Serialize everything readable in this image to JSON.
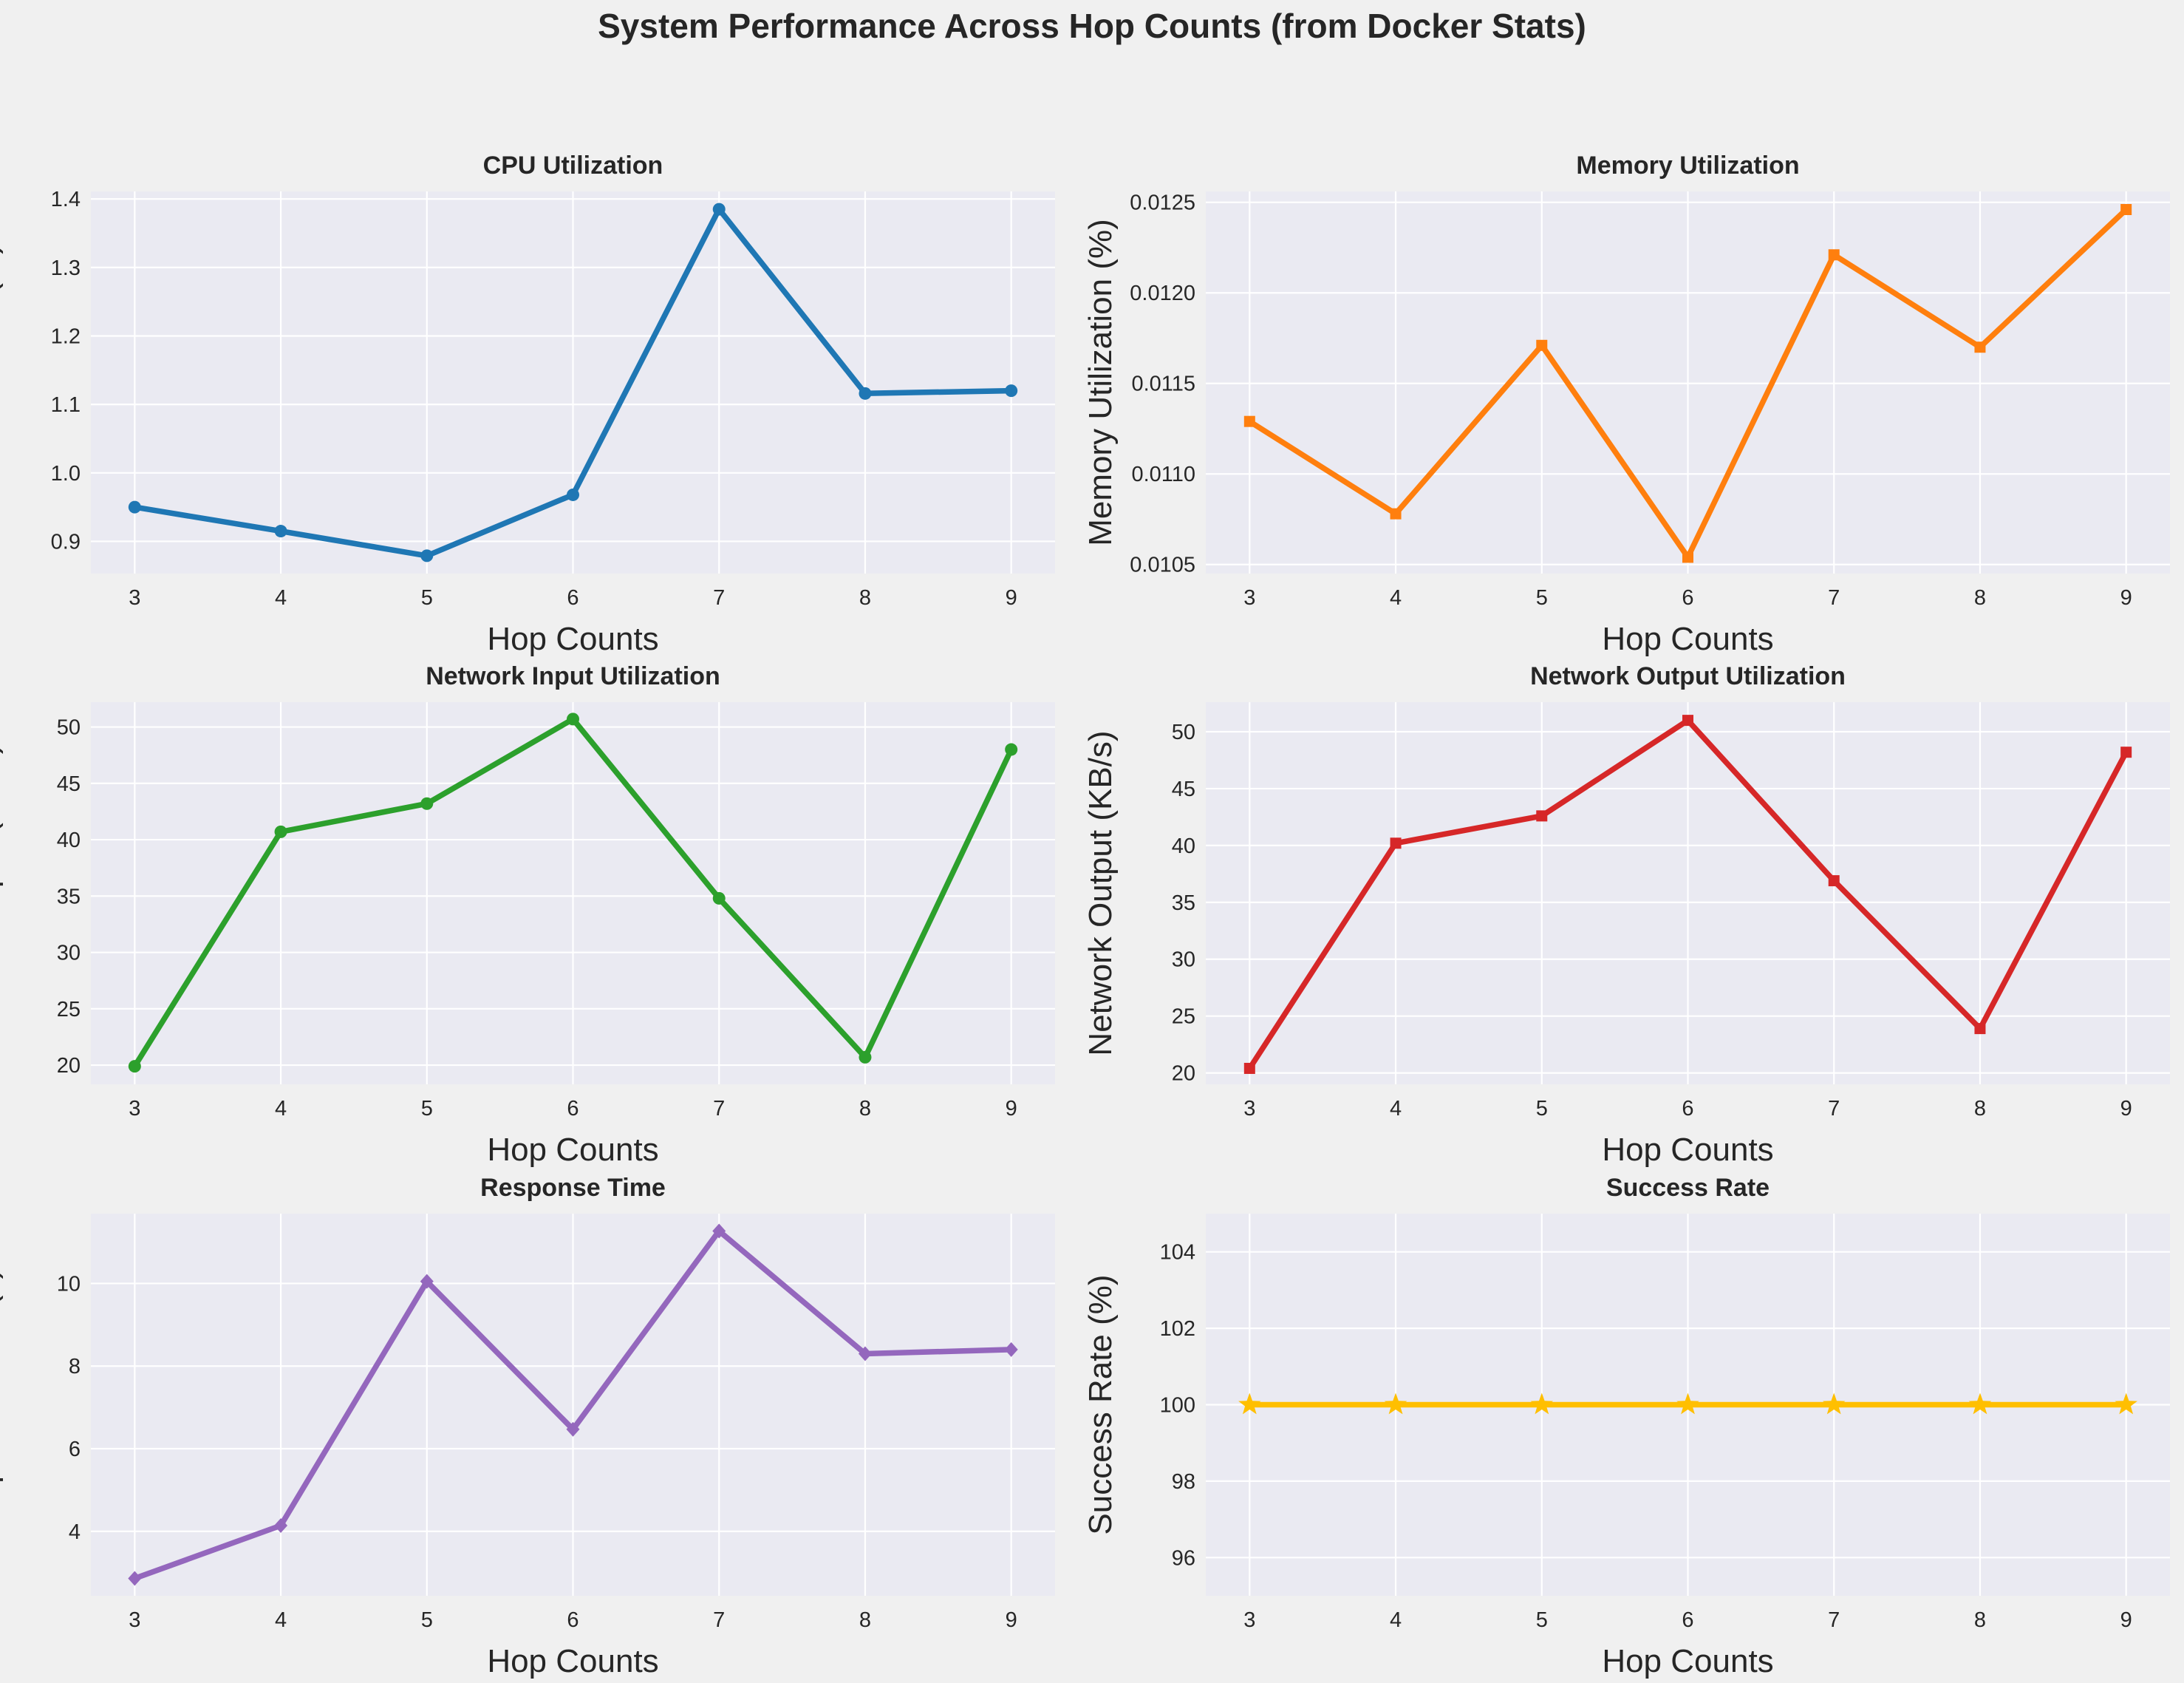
{
  "figure_title": "System Performance Across Hop Counts (from Docker Stats)",
  "chart_data": [
    {
      "type": "line",
      "title": "CPU Utilization",
      "xlabel": "Hop Counts",
      "ylabel": "CPU Utilization (%)",
      "x": [
        3,
        4,
        5,
        6,
        7,
        8,
        9
      ],
      "values": [
        0.95,
        0.915,
        0.879,
        0.968,
        1.385,
        1.116,
        1.12
      ],
      "xticks": [
        "3",
        "4",
        "5",
        "6",
        "7",
        "8",
        "9"
      ],
      "yticks": [
        0.9,
        1.0,
        1.1,
        1.2,
        1.3,
        1.4
      ],
      "ytick_labels": [
        "0.9",
        "1.0",
        "1.1",
        "1.2",
        "1.3",
        "1.4"
      ],
      "xlim": [
        2.7,
        9.3
      ],
      "ylim": [
        0.853,
        1.411
      ],
      "color": "#1f77b4",
      "marker": "circle",
      "grid": true
    },
    {
      "type": "line",
      "title": "Memory Utilization",
      "xlabel": "Hop Counts",
      "ylabel": "Memory Utilization (%)",
      "x": [
        3,
        4,
        5,
        6,
        7,
        8,
        9
      ],
      "values": [
        0.01129,
        0.01078,
        0.01171,
        0.01054,
        0.01221,
        0.0117,
        0.01246
      ],
      "xticks": [
        "3",
        "4",
        "5",
        "6",
        "7",
        "8",
        "9"
      ],
      "yticks": [
        0.0105,
        0.011,
        0.0115,
        0.012,
        0.0125
      ],
      "ytick_labels": [
        "0.0105",
        "0.0110",
        "0.0115",
        "0.0120",
        "0.0125"
      ],
      "xlim": [
        2.7,
        9.3
      ],
      "ylim": [
        0.01045,
        0.01256
      ],
      "color": "#ff7f0e",
      "marker": "square",
      "grid": true
    },
    {
      "type": "line",
      "title": "Network Input Utilization",
      "xlabel": "Hop Counts",
      "ylabel": "Network Input (KB/s)",
      "x": [
        3,
        4,
        5,
        6,
        7,
        8,
        9
      ],
      "values": [
        19.9,
        40.7,
        43.2,
        50.7,
        34.8,
        20.7,
        48.0
      ],
      "xticks": [
        "3",
        "4",
        "5",
        "6",
        "7",
        "8",
        "9"
      ],
      "yticks": [
        20,
        25,
        30,
        35,
        40,
        45,
        50
      ],
      "ytick_labels": [
        "20",
        "25",
        "30",
        "35",
        "40",
        "45",
        "50"
      ],
      "xlim": [
        2.7,
        9.3
      ],
      "ylim": [
        18.3,
        52.2
      ],
      "color": "#2ca02c",
      "marker": "circle",
      "grid": true
    },
    {
      "type": "line",
      "title": "Network Output Utilization",
      "xlabel": "Hop Counts",
      "ylabel": "Network Output (KB/s)",
      "x": [
        3,
        4,
        5,
        6,
        7,
        8,
        9
      ],
      "values": [
        20.4,
        40.2,
        42.6,
        51.0,
        36.9,
        23.9,
        48.2
      ],
      "xticks": [
        "3",
        "4",
        "5",
        "6",
        "7",
        "8",
        "9"
      ],
      "yticks": [
        20,
        25,
        30,
        35,
        40,
        45,
        50
      ],
      "ytick_labels": [
        "20",
        "25",
        "30",
        "35",
        "40",
        "45",
        "50"
      ],
      "xlim": [
        2.7,
        9.3
      ],
      "ylim": [
        19.0,
        52.6
      ],
      "color": "#d62728",
      "marker": "square",
      "grid": true
    },
    {
      "type": "line",
      "title": "Response Time",
      "xlabel": "Hop Counts",
      "ylabel": "Response Time (s)",
      "x": [
        3,
        4,
        5,
        6,
        7,
        8,
        9
      ],
      "values": [
        2.86,
        4.14,
        10.05,
        6.47,
        11.27,
        8.3,
        8.4
      ],
      "xticks": [
        "3",
        "4",
        "5",
        "6",
        "7",
        "8",
        "9"
      ],
      "yticks": [
        4,
        6,
        8,
        10
      ],
      "ytick_labels": [
        "4",
        "6",
        "8",
        "10"
      ],
      "xlim": [
        2.7,
        9.3
      ],
      "ylim": [
        2.44,
        11.69
      ],
      "color": "#9467bd",
      "marker": "diamond",
      "grid": true
    },
    {
      "type": "line",
      "title": "Success Rate",
      "xlabel": "Hop Counts",
      "ylabel": "Success Rate (%)",
      "x": [
        3,
        4,
        5,
        6,
        7,
        8,
        9
      ],
      "values": [
        100,
        100,
        100,
        100,
        100,
        100,
        100
      ],
      "xticks": [
        "3",
        "4",
        "5",
        "6",
        "7",
        "8",
        "9"
      ],
      "yticks": [
        96,
        98,
        100,
        102,
        104
      ],
      "ytick_labels": [
        "96",
        "98",
        "100",
        "102",
        "104"
      ],
      "xlim": [
        2.7,
        9.3
      ],
      "ylim": [
        95,
        105
      ],
      "color": "#ffbf00",
      "marker": "star",
      "grid": true
    }
  ]
}
